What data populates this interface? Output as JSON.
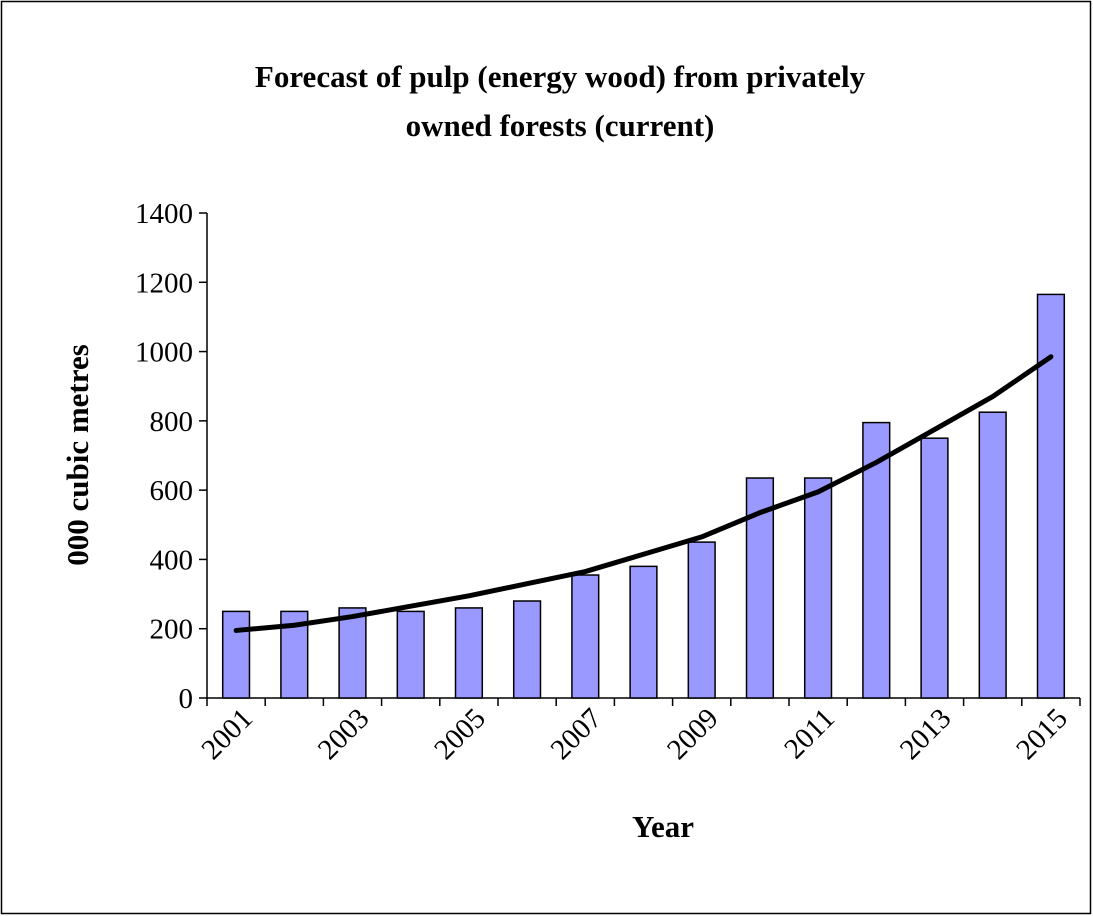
{
  "chart_data": {
    "type": "bar",
    "title": [
      "Forecast of pulp (energy wood) from privately",
      "owned forests (current)"
    ],
    "x_label": "Year",
    "y_label": "000 cubic metres",
    "categories": [
      "2001",
      null,
      "2003",
      null,
      "2005",
      null,
      "2007",
      null,
      "2009",
      null,
      "2011",
      null,
      "2013",
      null,
      "2015"
    ],
    "series": [
      {
        "type": "bar",
        "color": "#9999ff",
        "values": [
          250,
          250,
          260,
          250,
          260,
          280,
          355,
          380,
          450,
          635,
          635,
          795,
          750,
          825,
          1165
        ]
      },
      {
        "type": "line",
        "color": "#000000",
        "values": [
          195,
          210,
          235,
          265,
          295,
          330,
          365,
          415,
          465,
          535,
          595,
          680,
          775,
          870,
          985
        ]
      }
    ],
    "ylim": [
      0,
      1400
    ],
    "yticks": [
      0,
      200,
      400,
      600,
      800,
      1000,
      1200,
      1400
    ],
    "grid": false
  }
}
